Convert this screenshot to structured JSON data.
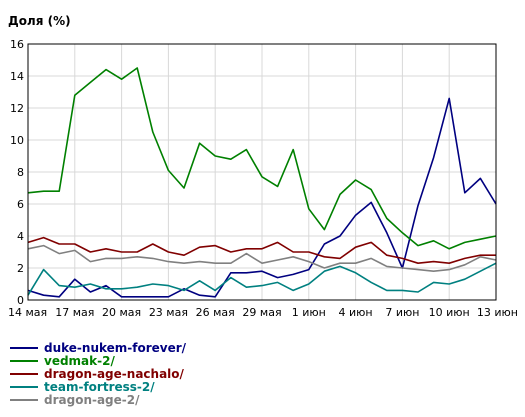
{
  "chart_data": {
    "type": "line",
    "ylabel": "Доля (%)",
    "ylim": [
      0,
      16
    ],
    "y_ticks": [
      0,
      2,
      4,
      6,
      8,
      10,
      12,
      14,
      16
    ],
    "x_tick_labels": [
      "14 мая",
      "17 мая",
      "20 мая",
      "23 мая",
      "26 мая",
      "29 мая",
      "1 июн",
      "4 июн",
      "7 июн",
      "10 июн",
      "13 июн"
    ],
    "grid": true,
    "legend_position": "bottom-left",
    "series": [
      {
        "name": "duke-nukem-forever/",
        "color": "#000080",
        "values": [
          0.6,
          0.3,
          0.2,
          1.3,
          0.5,
          0.9,
          0.2,
          0.2,
          0.2,
          0.2,
          0.7,
          0.3,
          0.2,
          1.7,
          1.7,
          1.8,
          1.4,
          1.6,
          1.9,
          3.5,
          4.0,
          5.3,
          6.1,
          4.2,
          2.0,
          5.9,
          8.9,
          12.6,
          6.7,
          7.6,
          6.0
        ]
      },
      {
        "name": "vedmak-2/",
        "color": "#008000",
        "values": [
          6.7,
          6.8,
          6.8,
          12.8,
          13.6,
          14.4,
          13.8,
          14.5,
          10.5,
          8.1,
          7.0,
          9.8,
          9.0,
          8.8,
          9.4,
          7.7,
          7.1,
          9.4,
          5.7,
          4.4,
          6.6,
          7.5,
          6.9,
          5.1,
          4.2,
          3.4,
          3.7,
          3.2,
          3.6,
          3.8,
          4.0
        ]
      },
      {
        "name": "dragon-age-nachalo/",
        "color": "#800000",
        "values": [
          3.6,
          3.9,
          3.5,
          3.5,
          3.0,
          3.2,
          3.0,
          3.0,
          3.5,
          3.0,
          2.8,
          3.3,
          3.4,
          3.0,
          3.2,
          3.2,
          3.6,
          3.0,
          3.0,
          2.7,
          2.6,
          3.3,
          3.6,
          2.8,
          2.6,
          2.3,
          2.4,
          2.3,
          2.6,
          2.8,
          2.8
        ]
      },
      {
        "name": "team-fortress-2/",
        "color": "#008080",
        "values": [
          0.3,
          1.9,
          0.9,
          0.8,
          1.0,
          0.7,
          0.7,
          0.8,
          1.0,
          0.9,
          0.6,
          1.2,
          0.6,
          1.4,
          0.8,
          0.9,
          1.1,
          0.6,
          1.0,
          1.8,
          2.1,
          1.7,
          1.1,
          0.6,
          0.6,
          0.5,
          1.1,
          1.0,
          1.3,
          1.8,
          2.3
        ]
      },
      {
        "name": "dragon-age-2/",
        "color": "#808080",
        "values": [
          3.2,
          3.4,
          2.9,
          3.1,
          2.4,
          2.6,
          2.6,
          2.7,
          2.6,
          2.4,
          2.3,
          2.4,
          2.3,
          2.3,
          2.9,
          2.3,
          2.5,
          2.7,
          2.4,
          2.0,
          2.3,
          2.3,
          2.6,
          2.1,
          2.0,
          1.9,
          1.8,
          1.9,
          2.2,
          2.7,
          2.5
        ]
      }
    ]
  }
}
